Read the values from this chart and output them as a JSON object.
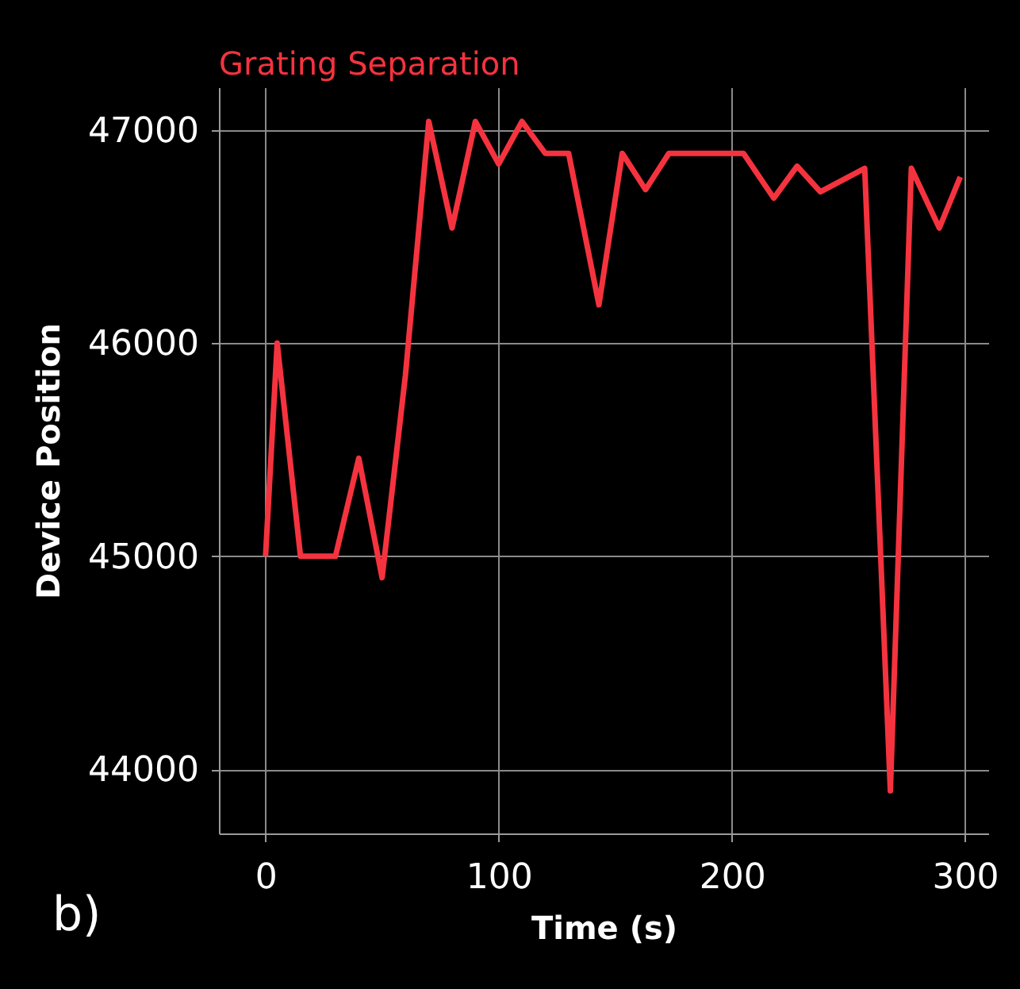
{
  "chart_data": {
    "type": "line",
    "xlabel": "Time (s)",
    "ylabel": "Device Position",
    "x": [
      0,
      5,
      15,
      30,
      40,
      50,
      60,
      70,
      80,
      90,
      100,
      110,
      120,
      130,
      143,
      153,
      163,
      173,
      205,
      218,
      228,
      238,
      257,
      268,
      277,
      289,
      298
    ],
    "series": [
      {
        "name": "Grating Separation",
        "color": "#f5333f",
        "values": [
          45000,
          46000,
          45000,
          45000,
          45460,
          44900,
          45850,
          47040,
          46540,
          47040,
          46840,
          47040,
          46890,
          46890,
          46180,
          46890,
          46720,
          46890,
          46890,
          46680,
          46830,
          46710,
          46820,
          43900,
          46820,
          46540,
          46780
        ]
      }
    ],
    "xlim": [
      -20,
      310
    ],
    "ylim": [
      43700,
      47200
    ],
    "xticks": [
      0,
      100,
      200,
      300
    ],
    "yticks": [
      44000,
      45000,
      46000,
      47000
    ],
    "grid": true,
    "legend": false,
    "marker": "none",
    "line_style": "solid",
    "annotations": [
      "b)"
    ]
  }
}
